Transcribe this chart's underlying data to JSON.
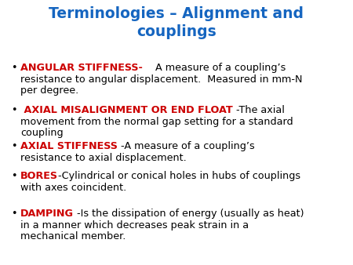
{
  "title_line1": "Terminologies – Alignment and",
  "title_line2": "couplings",
  "title_color": "#1565C0",
  "background_color": "#ffffff",
  "bullet_color": "#000000",
  "font_size_title": 13.5,
  "font_size_body": 9.2,
  "bullet_char": "•",
  "bullet_points": [
    {
      "term": "ANGULAR STIFFNESS-",
      "term_color": "#cc0000",
      "rest_line1": "    A measure of a coupling’s",
      "rest_lines": [
        "resistance to angular displacement.  Measured in mm-N",
        "per degree."
      ]
    },
    {
      "term": " AXIAL MISALIGNMENT OR END FLOAT",
      "term_color": "#cc0000",
      "rest_line1": " -The axial",
      "rest_lines": [
        "movement from the normal gap setting for a standard",
        "coupling"
      ]
    },
    {
      "term": "AXIAL STIFFNESS",
      "term_color": "#cc0000",
      "rest_line1": " -A measure of a coupling’s",
      "rest_lines": [
        "resistance to axial displacement."
      ]
    },
    {
      "term": "BORES",
      "term_color": "#cc0000",
      "rest_line1": "-Cylindrical or conical holes in hubs of couplings",
      "rest_lines": [
        "with axes coincident."
      ]
    },
    {
      "term": "DAMPING",
      "term_color": "#cc0000",
      "rest_line1": " -Is the dissipation of energy (usually as heat)",
      "rest_lines": [
        "in a manner which decreases peak strain in a",
        "mechanical member."
      ]
    }
  ]
}
